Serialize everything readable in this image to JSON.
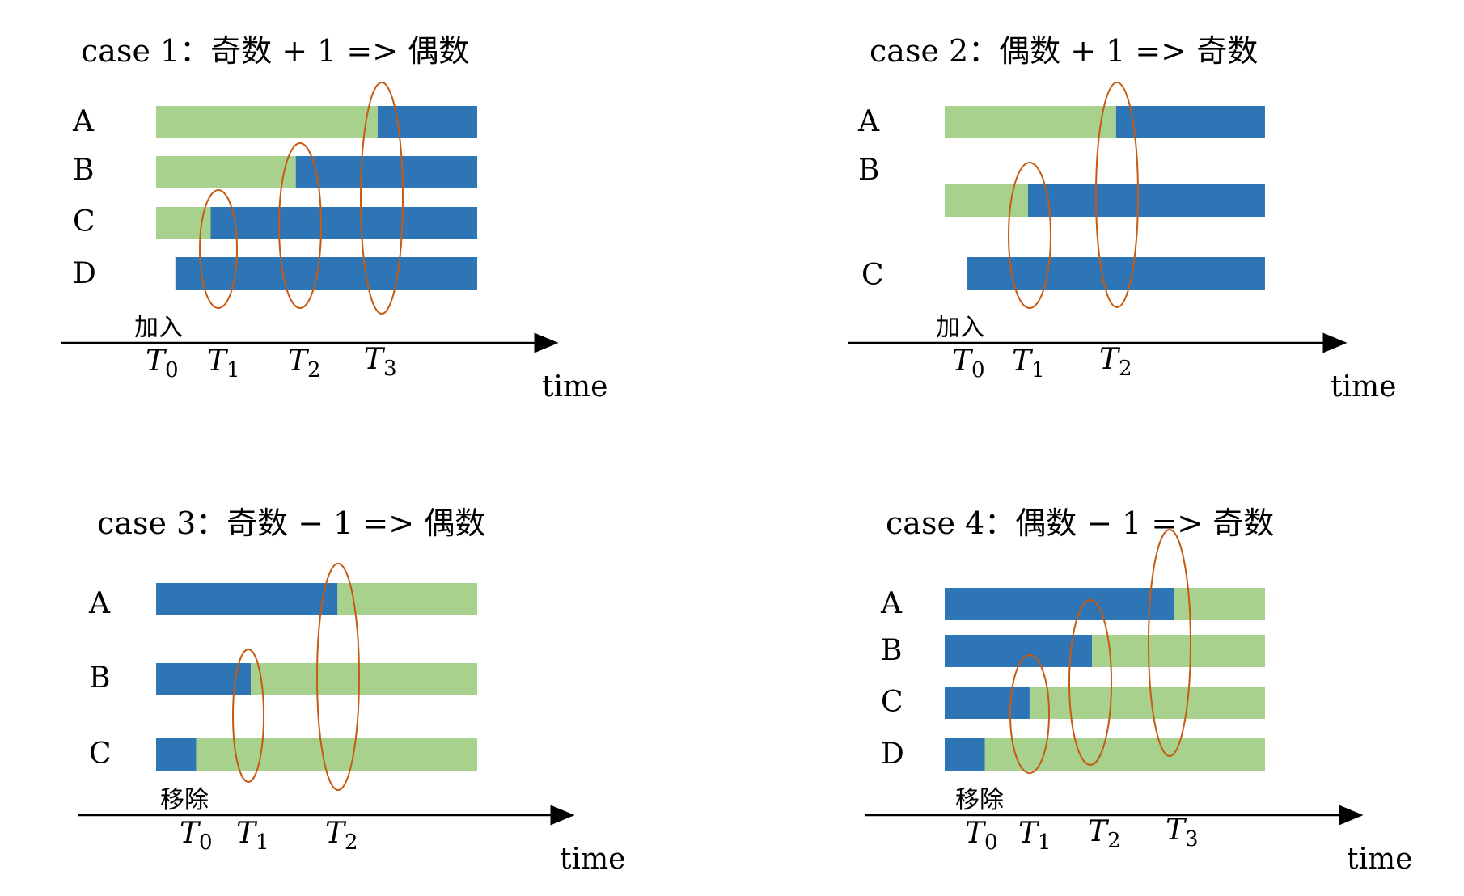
{
  "colors": {
    "green": "#a9d18e",
    "blue": "#2e75b6",
    "ellipse": "#c55a11",
    "axis": "#000000"
  },
  "panels": [
    {
      "title": "case 1：奇数 + 1 => 偶数",
      "event_label": "加入",
      "time_label": "time",
      "rows": [
        {
          "label": "A",
          "green_from": 0.0,
          "blue_from": 0.69
        },
        {
          "label": "B",
          "green_from": 0.0,
          "blue_from": 0.435
        },
        {
          "label": "C",
          "green_from": 0.0,
          "blue_from": 0.17
        },
        {
          "label": "D",
          "green_from": null,
          "blue_from": 0.06
        }
      ],
      "ticks": [
        {
          "name": "T",
          "sub": "0"
        },
        {
          "name": "T",
          "sub": "1"
        },
        {
          "name": "T",
          "sub": "2"
        },
        {
          "name": "T",
          "sub": "3"
        }
      ]
    },
    {
      "title": "case 2：偶数 + 1 => 奇数",
      "event_label": "加入",
      "time_label": "time",
      "rows": [
        {
          "label": "A",
          "green_from": 0.0,
          "blue_from": 0.535
        },
        {
          "label": "B",
          "green_from": 0.0,
          "blue_from": 0.26
        },
        {
          "label": "C",
          "green_from": null,
          "blue_from": 0.07
        }
      ],
      "ticks": [
        {
          "name": "T",
          "sub": "0"
        },
        {
          "name": "T",
          "sub": "1"
        },
        {
          "name": "T",
          "sub": "2"
        }
      ]
    },
    {
      "title": "case 3：奇数 − 1 => 偶数",
      "event_label": "移除",
      "time_label": "time",
      "rows": [
        {
          "label": "A",
          "blue_to": 0.565
        },
        {
          "label": "B",
          "blue_to": 0.295
        },
        {
          "label": "C",
          "blue_to": 0.125
        }
      ],
      "ticks": [
        {
          "name": "T",
          "sub": "0"
        },
        {
          "name": "T",
          "sub": "1"
        },
        {
          "name": "T",
          "sub": "2"
        }
      ]
    },
    {
      "title": "case 4：偶数 − 1 => 奇数",
      "event_label": "移除",
      "time_label": "time",
      "rows": [
        {
          "label": "A",
          "blue_to": 0.715
        },
        {
          "label": "B",
          "blue_to": 0.46
        },
        {
          "label": "C",
          "blue_to": 0.265
        },
        {
          "label": "D",
          "blue_to": 0.125
        }
      ],
      "ticks": [
        {
          "name": "T",
          "sub": "0"
        },
        {
          "name": "T",
          "sub": "1"
        },
        {
          "name": "T",
          "sub": "2"
        },
        {
          "name": "T",
          "sub": "3"
        }
      ]
    }
  ]
}
